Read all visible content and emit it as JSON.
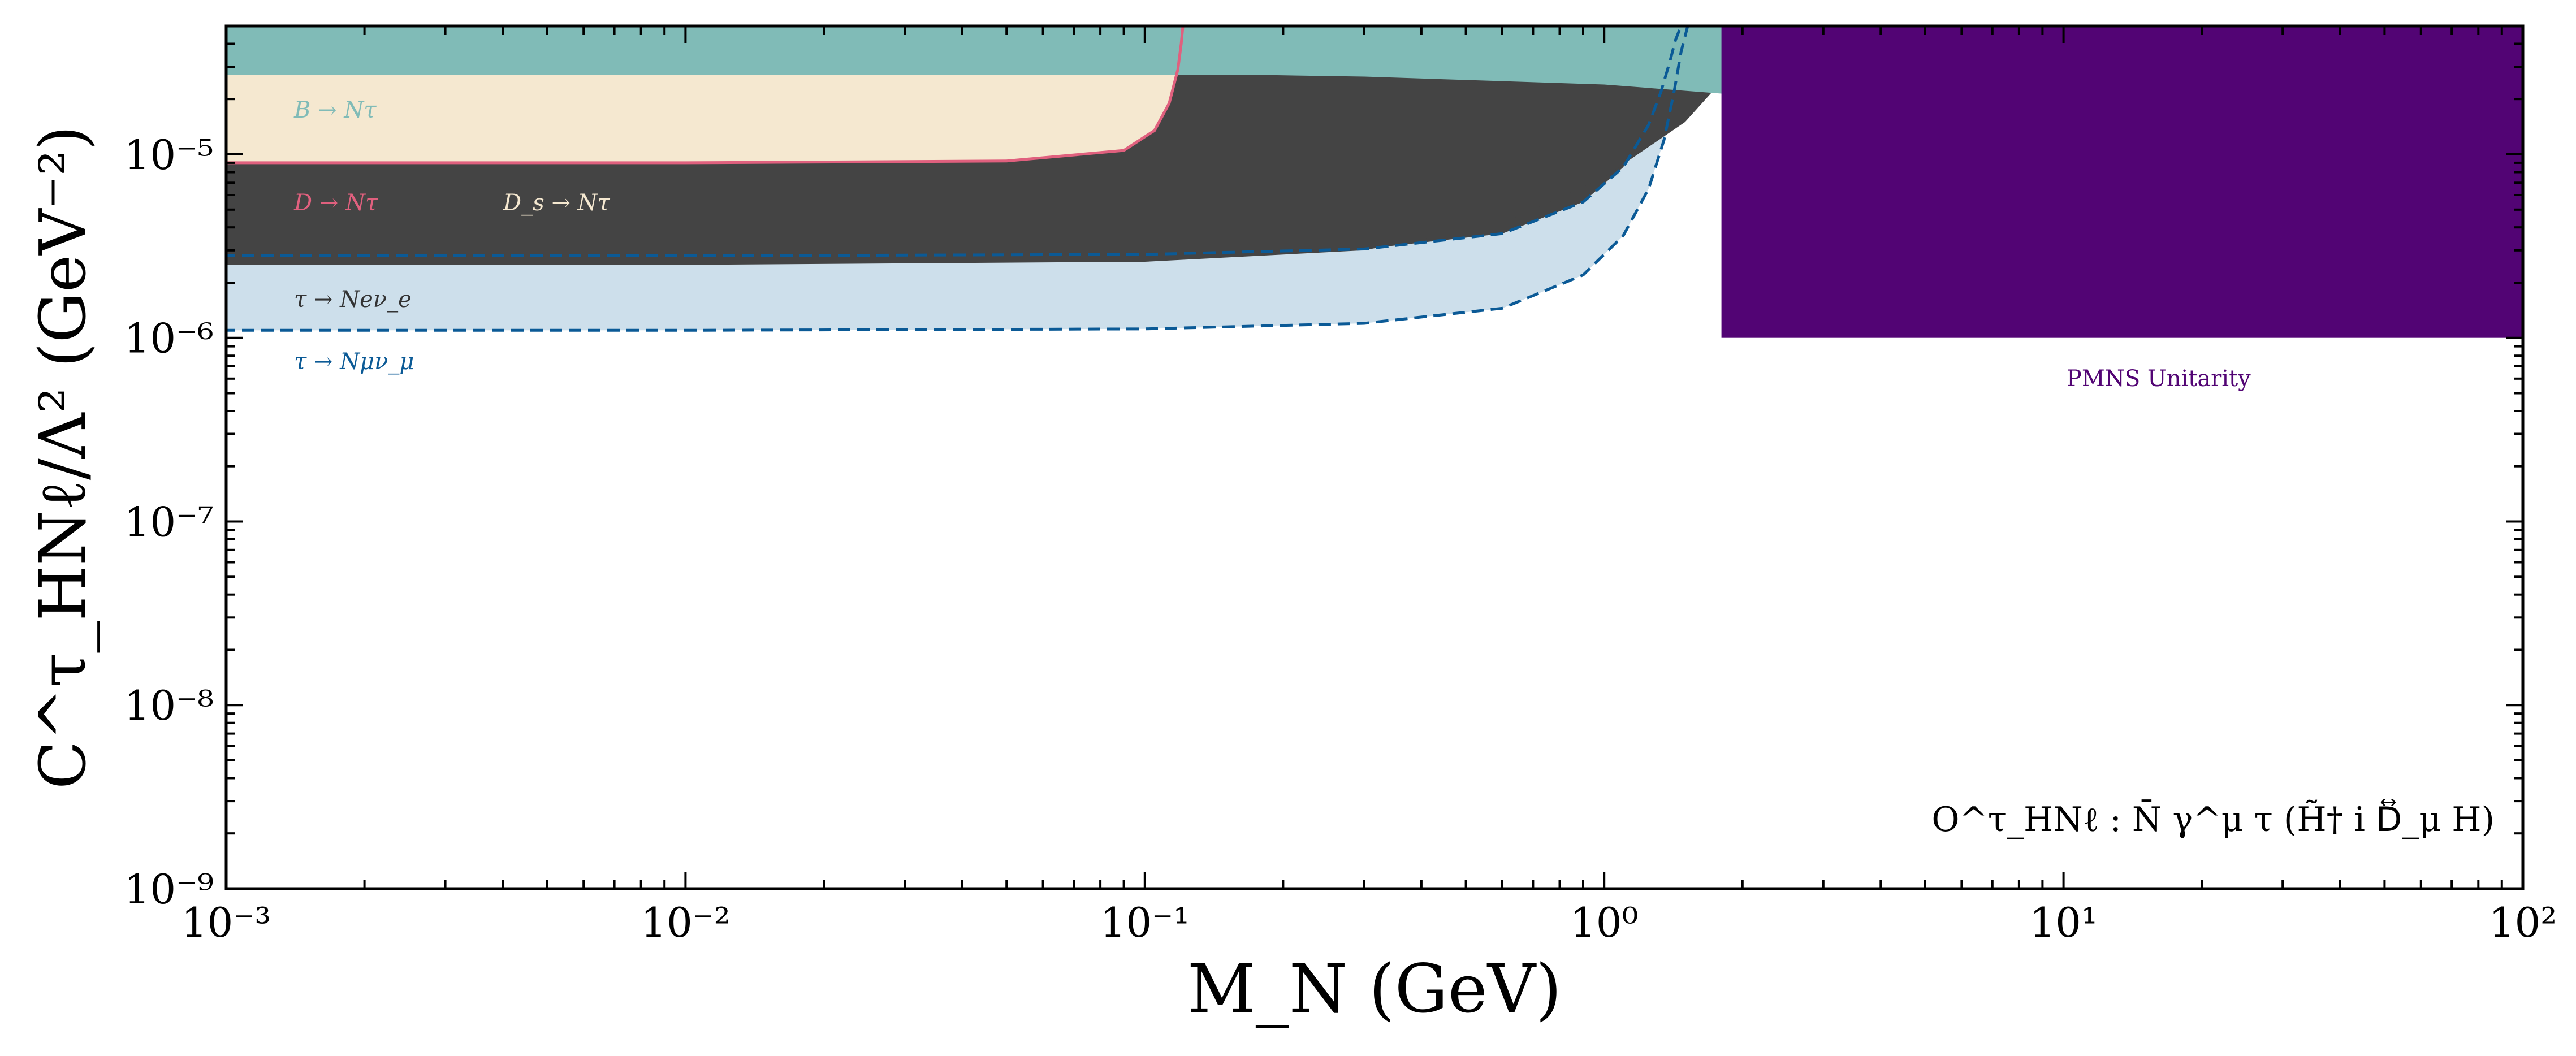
{
  "chart_data": {
    "type": "area",
    "title": "",
    "xlabel": "M_N (GeV)",
    "ylabel": "C^τ_HNℓ/Λ² (GeV⁻²)",
    "x_scale": "log",
    "y_scale": "log",
    "xlim": [
      0.001,
      100
    ],
    "ylim": [
      1e-09,
      5e-05
    ],
    "x_ticks": [
      {
        "value": 0.001,
        "label": "10⁻³"
      },
      {
        "value": 0.01,
        "label": "10⁻²"
      },
      {
        "value": 0.1,
        "label": "10⁻¹"
      },
      {
        "value": 1,
        "label": "10⁰"
      },
      {
        "value": 10,
        "label": "10¹"
      },
      {
        "value": 100,
        "label": "10²"
      }
    ],
    "y_ticks": [
      {
        "value": 1e-09,
        "label": "10⁻⁹"
      },
      {
        "value": 1e-08,
        "label": "10⁻⁸"
      },
      {
        "value": 1e-07,
        "label": "10⁻⁷"
      },
      {
        "value": 1e-06,
        "label": "10⁻⁶"
      },
      {
        "value": 1e-05,
        "label": "10⁻⁵"
      }
    ],
    "grid": false,
    "annotation": "O^τ_HNℓ : N̄ γ^μ τ (H̃† i D⃡_μ H)",
    "series": [
      {
        "name": "τ → Nμν_μ",
        "label": "τ → Nμν_μ",
        "color": "#cddfeb",
        "edge_color": "#0b5a96",
        "edge_style": "dashed",
        "x": [
          0.001,
          0.01,
          0.1,
          0.3,
          0.6,
          0.9,
          1.1,
          1.25,
          1.35,
          1.42,
          1.47,
          1.52
        ],
        "y": [
          1.1e-06,
          1.1e-06,
          1.12e-06,
          1.2e-06,
          1.45e-06,
          2.2e-06,
          3.6e-06,
          6.5e-06,
          1.2e-05,
          2.2e-05,
          3.6e-05,
          5e-05
        ]
      },
      {
        "name": "τ → Neν_e",
        "label": "τ → Neν_e",
        "color": "#444444",
        "edge_color": "#0b5a96",
        "edge_style": "dashed",
        "x": [
          0.001,
          0.01,
          0.1,
          0.3,
          0.6,
          0.9,
          1.1,
          1.25,
          1.33,
          1.39,
          1.43,
          1.47
        ],
        "y": [
          2.8e-06,
          2.8e-06,
          2.85e-06,
          3.05e-06,
          3.7e-06,
          5.5e-06,
          8.5e-06,
          1.45e-05,
          2.2e-05,
          3.2e-05,
          4.2e-05,
          5e-05
        ]
      },
      {
        "name": "D_s → Nτ",
        "label": "D_s → Nτ",
        "color": "#444444",
        "x": [
          0.001,
          0.01,
          0.1,
          0.3,
          0.6,
          1.0,
          1.5,
          1.75
        ],
        "y": [
          2.5e-06,
          2.5e-06,
          2.6e-06,
          3e-06,
          4.2e-06,
          7.5e-06,
          1.5e-05,
          2.3e-05
        ]
      },
      {
        "name": "D → Nτ",
        "label": "D → Nτ",
        "color": "#f5e8d0",
        "edge_color": "#e0607e",
        "x": [
          0.001,
          0.01,
          0.05,
          0.09,
          0.105,
          0.113,
          0.118,
          0.12,
          0.121
        ],
        "y": [
          9e-06,
          9e-06,
          9.2e-06,
          1.05e-05,
          1.35e-05,
          1.9e-05,
          2.9e-05,
          4e-05,
          5e-05
        ]
      },
      {
        "name": "B → Nτ",
        "label": "B → Nτ",
        "color": "#80bbb7",
        "x": [
          0.001,
          0.01,
          0.1,
          0.19,
          0.3,
          1.0,
          2.0,
          3.0,
          3.3,
          3.5,
          3.55
        ],
        "y": [
          2.7e-05,
          2.7e-05,
          2.7e-05,
          2.7e-05,
          2.65e-05,
          2.4e-05,
          2.1e-05,
          1.95e-05,
          2.2e-05,
          3e-05,
          5e-05
        ]
      },
      {
        "name": "PMNS Unitarity",
        "label": "PMNS Unitarity",
        "color": "#520474",
        "x": [
          1.8,
          100
        ],
        "y_low": 1e-06,
        "y_high": 5e-05
      }
    ]
  }
}
